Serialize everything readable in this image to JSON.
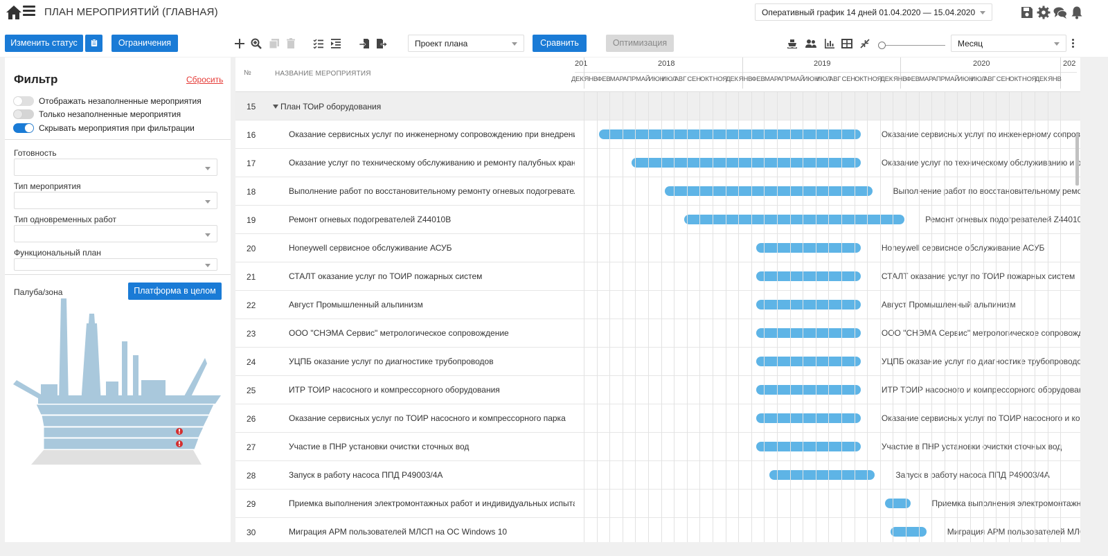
{
  "header": {
    "title": "ПЛАН МЕРОПРИЯТИЙ (ГЛАВНАЯ)",
    "schedule_select": "Оперативный график 14 дней 01.04.2020 — 15.04.2020",
    "icons": [
      "save-icon",
      "gear-icon",
      "chat-icon",
      "bell-icon"
    ]
  },
  "toolbar": {
    "change_status": "Изменить статус",
    "restrictions": "Ограничения",
    "plan_select": "Проект плана",
    "compare": "Сравнить",
    "optimization": "Оптимизация",
    "scale_select": "Месяц"
  },
  "filter": {
    "title": "Фильтр",
    "reset": "Сбросить",
    "toggles": [
      {
        "label": "Отображать незаполненные мероприятия",
        "state": "off"
      },
      {
        "label": "Только незаполненные мероприятия",
        "state": "disabled"
      },
      {
        "label": "Скрывать мероприятия при фильтрации",
        "state": "on"
      }
    ],
    "fields": [
      {
        "label": "Готовность"
      },
      {
        "label": "Тип мероприятия"
      },
      {
        "label": "Тип одновременных работ"
      },
      {
        "label": "Функциональный план"
      }
    ],
    "zone_label": "Палуба/зона",
    "platform_button": "Платформа в целом"
  },
  "grid": {
    "col_num": "№",
    "col_name": "НАЗВАНИЕ МЕРОПРИЯТИЯ",
    "years": [
      "201",
      "2018",
      "2019",
      "2020",
      "202"
    ],
    "months": [
      "ДЕК",
      "ЯНВ",
      "ФЕВ",
      "МАР",
      "АПР",
      "МАЙ",
      "ИЮН",
      "ИЮЛ",
      "АВГ",
      "СЕН",
      "ОКТ",
      "НОЯ",
      "ДЕК",
      "ЯНВ",
      "ФЕВ",
      "МАР",
      "АПР",
      "МАЙ",
      "ИЮН",
      "ИЮЛ",
      "АВГ",
      "СЕН",
      "ОКТ",
      "НОЯ",
      "ДЕК",
      "ЯНВ",
      "ФЕВ",
      "МАР",
      "АПР",
      "МАЙ",
      "ИЮН",
      "ИЮЛ",
      "АВГ",
      "СЕН",
      "ОКТ",
      "НОЯ",
      "ДЕК",
      "ЯНВ"
    ],
    "group": {
      "num": "15",
      "name": "План ТОиР оборудования"
    },
    "rows": [
      {
        "num": "16",
        "name": "Оказание сервисных услуг по инженерному сопровождению при внедрении",
        "label": "Оказание сервисных услуг по инженерному сопровождению при внедрении",
        "start_month": 1.2,
        "end_month": 21.5
      },
      {
        "num": "17",
        "name": "Оказание услуг по техническому обслуживанию и ремонту палубных кранов",
        "label": "Оказание услуг по техническому обслуживанию и ремонту палубных кранов",
        "start_month": 3.7,
        "end_month": 21.5
      },
      {
        "num": "18",
        "name": "Выполнение работ по восстановительному ремонту огневых подогревателей",
        "label": "Выполнение работ по восстановительному ремонту огневых подогревателей",
        "start_month": 6.3,
        "end_month": 22.4
      },
      {
        "num": "19",
        "name": "Ремонт огневых подогревателей Z44010B",
        "label": "Ремонт огневых подогревателей Z44010B",
        "start_month": 7.8,
        "end_month": 24.9
      },
      {
        "num": "20",
        "name": "Honeywell сервисное обслуживание АСУБ",
        "label": "Honeywell сервисное обслуживание АСУБ",
        "start_month": 13.4,
        "end_month": 21.5
      },
      {
        "num": "21",
        "name": "СТАЛТ оказание услуг по ТОИР пожарных систем",
        "label": "СТАЛТ оказание услуг по ТОИР пожарных систем",
        "start_month": 13.4,
        "end_month": 21.5
      },
      {
        "num": "22",
        "name": "Август Промышленный альпинизм",
        "label": "Август Промышленный альпинизм",
        "start_month": 13.4,
        "end_month": 21.5
      },
      {
        "num": "23",
        "name": "ООО \"СНЭМА Сервис\" метрологическое сопровождение",
        "label": "ООО \"СНЭМА Сервис\" метрологическое сопровождение",
        "start_month": 13.4,
        "end_month": 21.5
      },
      {
        "num": "24",
        "name": "УЦПБ оказание услуг по диагностике трубопроводов",
        "label": "УЦПБ оказание услуг по диагностике трубопроводов",
        "start_month": 13.4,
        "end_month": 21.5
      },
      {
        "num": "25",
        "name": "ИТР ТОИР насосного и компрессорного оборудования",
        "label": "ИТР ТОИР насосного и компрессорного оборудования",
        "start_month": 13.4,
        "end_month": 21.5
      },
      {
        "num": "26",
        "name": "Оказание сервисных услуг по ТОИР насосного и компрессорного парка",
        "label": "Оказание сервисных услуг по ТОИР насосного и компрессорного парка",
        "start_month": 13.4,
        "end_month": 21.5
      },
      {
        "num": "27",
        "name": "Участие в ПНР установки очистки сточных вод",
        "label": "Участие в ПНР установки очистки сточных вод",
        "start_month": 13.4,
        "end_month": 21.5
      },
      {
        "num": "28",
        "name": "Запуск в работу насоса ППД Р49003/4А",
        "label": "Запуск в работу насоса ППД Р49003/4А",
        "start_month": 14.4,
        "end_month": 22.6
      },
      {
        "num": "29",
        "name": "Приемка выполнения электромонтажных работ и индивидуальных испытаний",
        "label": "Приемка выполнения электромонтажных работ и индивидуальных испытаний",
        "start_month": 23.4,
        "end_month": 25.4
      },
      {
        "num": "30",
        "name": "Миграция АРМ пользователей МЛСП на ОС Windows 10",
        "label": "Миграция АРМ пользователей МЛСП на ОС Windows 10",
        "start_month": 23.8,
        "end_month": 26.6
      }
    ]
  }
}
